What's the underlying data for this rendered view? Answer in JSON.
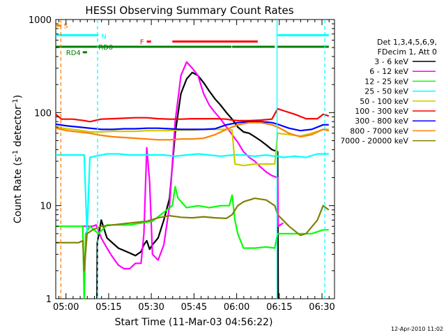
{
  "chart_data": {
    "type": "line",
    "title": "HESSI Observing Summary Count Rates",
    "xlabel": "Start Time (11-Mar-03 04:56:22)",
    "ylabel": "Count Rate (s⁻¹ detector⁻¹)",
    "ylabel_main": "Count Rate (s",
    "ylabel_sup1": "-1",
    "ylabel_mid": " detector",
    "ylabel_sup2": "-1",
    "ylabel_end": ")",
    "x_unit": "minutes after 04:56:22",
    "xlim": [
      0,
      98
    ],
    "ylim": [
      1,
      1000
    ],
    "yscale": "log",
    "x_ticks": [
      {
        "label": "05:00",
        "x": 3.6
      },
      {
        "label": "05:15",
        "x": 18.6
      },
      {
        "label": "05:30",
        "x": 33.6
      },
      {
        "label": "05:45",
        "x": 48.6
      },
      {
        "label": "06:00",
        "x": 63.6
      },
      {
        "label": "06:15",
        "x": 78.6
      },
      {
        "label": "06:30",
        "x": 93.6
      }
    ],
    "y_ticks": [
      {
        "label": "1",
        "y": 1
      },
      {
        "label": "10",
        "y": 10
      },
      {
        "label": "100",
        "y": 100
      },
      {
        "label": "1000",
        "y": 1000
      }
    ],
    "legend_header": [
      "Det 1,3,4,5,6,9,",
      "FDecim 1, Att 0"
    ],
    "series": [
      {
        "name": "3 - 6 keV",
        "color": "#000000",
        "points": [
          [
            14.5,
            1
          ],
          [
            14.6,
            4
          ],
          [
            16,
            7
          ],
          [
            18,
            4.5
          ],
          [
            22,
            3.5
          ],
          [
            26,
            3.1
          ],
          [
            28,
            2.9
          ],
          [
            30,
            3.2
          ],
          [
            31,
            3.8
          ],
          [
            32,
            4.2
          ],
          [
            33,
            3.4
          ],
          [
            34,
            3.8
          ],
          [
            36,
            4.5
          ],
          [
            38,
            7
          ],
          [
            40,
            12
          ],
          [
            42,
            60
          ],
          [
            44,
            160
          ],
          [
            46,
            230
          ],
          [
            48,
            270
          ],
          [
            50,
            250
          ],
          [
            52,
            210
          ],
          [
            54,
            170
          ],
          [
            56,
            140
          ],
          [
            58,
            120
          ],
          [
            60,
            100
          ],
          [
            62,
            85
          ],
          [
            64,
            70
          ],
          [
            66,
            62
          ],
          [
            68,
            60
          ],
          [
            70,
            55
          ],
          [
            72,
            50
          ],
          [
            74,
            45
          ],
          [
            76,
            40
          ],
          [
            78,
            38
          ],
          [
            78.2,
            1
          ]
        ]
      },
      {
        "name": "6 - 12 keV",
        "color": "#ff00ff",
        "points": [
          [
            9,
            6
          ],
          [
            11,
            6
          ],
          [
            13,
            6
          ],
          [
            14.2,
            6.2
          ],
          [
            16,
            4.5
          ],
          [
            18,
            3.5
          ],
          [
            20,
            2.8
          ],
          [
            22,
            2.3
          ],
          [
            24,
            2.1
          ],
          [
            26,
            2.1
          ],
          [
            28,
            2.4
          ],
          [
            30,
            2.4
          ],
          [
            31,
            5
          ],
          [
            32,
            42
          ],
          [
            33,
            18
          ],
          [
            34,
            3
          ],
          [
            36,
            2.6
          ],
          [
            38,
            3.8
          ],
          [
            40,
            10
          ],
          [
            42,
            80
          ],
          [
            44,
            250
          ],
          [
            46,
            350
          ],
          [
            48,
            300
          ],
          [
            50,
            250
          ],
          [
            52,
            160
          ],
          [
            54,
            120
          ],
          [
            56,
            100
          ],
          [
            58,
            85
          ],
          [
            60,
            70
          ],
          [
            62,
            58
          ],
          [
            64,
            48
          ],
          [
            66,
            38
          ],
          [
            68,
            33
          ],
          [
            70,
            30
          ],
          [
            72,
            26
          ],
          [
            74,
            23
          ],
          [
            76,
            21
          ],
          [
            78,
            20
          ],
          [
            78.2,
            6
          ],
          [
            80,
            6.5
          ]
        ]
      },
      {
        "name": "12 - 25 keV",
        "color": "#00ff00",
        "points": [
          [
            0,
            6
          ],
          [
            4,
            6
          ],
          [
            8,
            6
          ],
          [
            9.5,
            6
          ],
          [
            10,
            1
          ],
          [
            10.5,
            5
          ],
          [
            12,
            6
          ],
          [
            15,
            5
          ],
          [
            18,
            6.2
          ],
          [
            22,
            6.2
          ],
          [
            26,
            6.2
          ],
          [
            30,
            6.5
          ],
          [
            34,
            6.8
          ],
          [
            38,
            8.5
          ],
          [
            41,
            10
          ],
          [
            42,
            16
          ],
          [
            43,
            12
          ],
          [
            46,
            9.5
          ],
          [
            50,
            10
          ],
          [
            54,
            9.5
          ],
          [
            58,
            10
          ],
          [
            61,
            10
          ],
          [
            62,
            13
          ],
          [
            63,
            7
          ],
          [
            64,
            5
          ],
          [
            66,
            3.5
          ],
          [
            70,
            3.5
          ],
          [
            74,
            3.6
          ],
          [
            77,
            3.5
          ],
          [
            78,
            5
          ],
          [
            82,
            5
          ],
          [
            86,
            5
          ],
          [
            90,
            5
          ],
          [
            94,
            5.5
          ],
          [
            96,
            5.5
          ]
        ]
      },
      {
        "name": "25 - 50 keV",
        "color": "#00ffff",
        "points": [
          [
            0,
            35
          ],
          [
            4,
            35
          ],
          [
            8,
            35
          ],
          [
            10,
            35
          ],
          [
            11,
            5
          ],
          [
            12,
            33
          ],
          [
            14,
            34
          ],
          [
            18,
            36
          ],
          [
            22,
            36
          ],
          [
            26,
            35
          ],
          [
            30,
            35
          ],
          [
            34,
            35
          ],
          [
            38,
            35
          ],
          [
            42,
            34
          ],
          [
            46,
            35
          ],
          [
            50,
            36
          ],
          [
            54,
            35
          ],
          [
            58,
            34
          ],
          [
            62,
            35
          ],
          [
            66,
            35
          ],
          [
            70,
            34
          ],
          [
            74,
            35
          ],
          [
            77,
            34
          ],
          [
            78,
            34
          ],
          [
            80,
            33
          ],
          [
            84,
            34
          ],
          [
            88,
            33
          ],
          [
            92,
            36
          ],
          [
            96,
            36
          ]
        ]
      },
      {
        "name": "50 - 100 keV",
        "color": "#cccc00",
        "points": [
          [
            0,
            70
          ],
          [
            4,
            67
          ],
          [
            8,
            65
          ],
          [
            12,
            62
          ],
          [
            16,
            62
          ],
          [
            20,
            63
          ],
          [
            24,
            63
          ],
          [
            28,
            63
          ],
          [
            32,
            64
          ],
          [
            36,
            64
          ],
          [
            40,
            64
          ],
          [
            44,
            65
          ],
          [
            48,
            65
          ],
          [
            52,
            66
          ],
          [
            56,
            66
          ],
          [
            60,
            66
          ],
          [
            62,
            65
          ],
          [
            63,
            28
          ],
          [
            66,
            27
          ],
          [
            70,
            28
          ],
          [
            74,
            28
          ],
          [
            77,
            28
          ],
          [
            78,
            60
          ],
          [
            82,
            58
          ],
          [
            86,
            56
          ],
          [
            90,
            60
          ],
          [
            94,
            66
          ],
          [
            96,
            66
          ]
        ]
      },
      {
        "name": "100 - 300 keV",
        "color": "#ff0000",
        "points": [
          [
            0,
            96
          ],
          [
            2,
            85
          ],
          [
            6,
            85
          ],
          [
            10,
            82
          ],
          [
            12,
            80
          ],
          [
            16,
            85
          ],
          [
            20,
            86
          ],
          [
            24,
            87
          ],
          [
            28,
            88
          ],
          [
            32,
            88
          ],
          [
            36,
            86
          ],
          [
            40,
            85
          ],
          [
            44,
            85
          ],
          [
            48,
            86
          ],
          [
            52,
            86
          ],
          [
            56,
            86
          ],
          [
            60,
            85
          ],
          [
            62,
            83
          ],
          [
            64,
            82
          ],
          [
            68,
            82
          ],
          [
            72,
            83
          ],
          [
            76,
            85
          ],
          [
            78,
            110
          ],
          [
            80,
            105
          ],
          [
            84,
            96
          ],
          [
            88,
            86
          ],
          [
            92,
            86
          ],
          [
            94,
            96
          ],
          [
            96,
            92
          ]
        ]
      },
      {
        "name": "300 - 800 keV",
        "color": "#0000ff",
        "points": [
          [
            0,
            75
          ],
          [
            4,
            72
          ],
          [
            8,
            70
          ],
          [
            12,
            68
          ],
          [
            16,
            66
          ],
          [
            20,
            66
          ],
          [
            24,
            67
          ],
          [
            28,
            67
          ],
          [
            32,
            68
          ],
          [
            36,
            68
          ],
          [
            40,
            67
          ],
          [
            44,
            66
          ],
          [
            48,
            66
          ],
          [
            52,
            66
          ],
          [
            56,
            67
          ],
          [
            60,
            74
          ],
          [
            64,
            78
          ],
          [
            68,
            80
          ],
          [
            72,
            80
          ],
          [
            76,
            78
          ],
          [
            78,
            75
          ],
          [
            82,
            68
          ],
          [
            86,
            64
          ],
          [
            90,
            66
          ],
          [
            94,
            74
          ],
          [
            96,
            74
          ]
        ]
      },
      {
        "name": "800 - 7000 keV",
        "color": "#ff8000",
        "points": [
          [
            0,
            68
          ],
          [
            4,
            64
          ],
          [
            8,
            62
          ],
          [
            12,
            60
          ],
          [
            16,
            57
          ],
          [
            20,
            55
          ],
          [
            24,
            54
          ],
          [
            28,
            53
          ],
          [
            32,
            52
          ],
          [
            36,
            51
          ],
          [
            40,
            51
          ],
          [
            44,
            52
          ],
          [
            48,
            52
          ],
          [
            52,
            53
          ],
          [
            56,
            58
          ],
          [
            60,
            66
          ],
          [
            64,
            74
          ],
          [
            68,
            78
          ],
          [
            72,
            78
          ],
          [
            76,
            74
          ],
          [
            78,
            70
          ],
          [
            82,
            60
          ],
          [
            86,
            55
          ],
          [
            90,
            58
          ],
          [
            94,
            66
          ],
          [
            96,
            64
          ]
        ]
      },
      {
        "name": "7000 - 20000 keV",
        "color": "#808000",
        "points": [
          [
            0,
            4
          ],
          [
            4,
            4
          ],
          [
            6,
            4
          ],
          [
            8,
            4
          ],
          [
            9.5,
            4.2
          ],
          [
            10,
            2
          ],
          [
            11,
            5
          ],
          [
            13,
            5.5
          ],
          [
            16,
            6
          ],
          [
            20,
            6.2
          ],
          [
            24,
            6.4
          ],
          [
            28,
            6.6
          ],
          [
            32,
            6.8
          ],
          [
            36,
            7.4
          ],
          [
            40,
            7.8
          ],
          [
            44,
            7.5
          ],
          [
            48,
            7.4
          ],
          [
            52,
            7.6
          ],
          [
            56,
            7.4
          ],
          [
            60,
            7.3
          ],
          [
            62,
            8
          ],
          [
            64,
            10
          ],
          [
            66,
            11
          ],
          [
            70,
            12
          ],
          [
            74,
            11.5
          ],
          [
            77,
            10
          ],
          [
            78,
            8
          ],
          [
            82,
            6
          ],
          [
            86,
            4.8
          ],
          [
            88,
            5
          ],
          [
            92,
            7
          ],
          [
            94,
            10
          ],
          [
            96,
            9
          ]
        ]
      }
    ],
    "flags": [
      {
        "label": "S",
        "color": "#ff8000",
        "segments": [
          [
            0,
            2
          ]
        ],
        "y": 860
      },
      {
        "label": "N",
        "color": "#00ffff",
        "segments": [
          [
            0,
            15
          ],
          [
            78,
            96
          ]
        ],
        "y": 680
      },
      {
        "label": "F",
        "color": "#ff0000",
        "segments": [
          [
            32,
            33.5
          ],
          [
            41,
            71
          ]
        ],
        "y": 580
      },
      {
        "label": "RD0",
        "color": "#008000",
        "segments": [
          [
            0,
            61.8
          ],
          [
            62,
            77
          ],
          [
            78,
            96
          ]
        ],
        "y": 510
      },
      {
        "label": "RD4",
        "color": "#008000",
        "segments": [
          [
            9.5,
            11
          ]
        ],
        "y": 445
      }
    ],
    "vertical_markers": [
      {
        "x": 1.8,
        "color": "#ff8000",
        "style": "dashed"
      },
      {
        "x": 14.7,
        "color": "#00ffff",
        "style": "dashed"
      },
      {
        "x": 77.8,
        "color": "#00ffff",
        "style": "solid"
      },
      {
        "x": 94.6,
        "color": "#00ffff",
        "style": "dashed"
      }
    ],
    "grid": false,
    "legend": "right",
    "footer_date": "12-Apr-2010 11:02"
  }
}
